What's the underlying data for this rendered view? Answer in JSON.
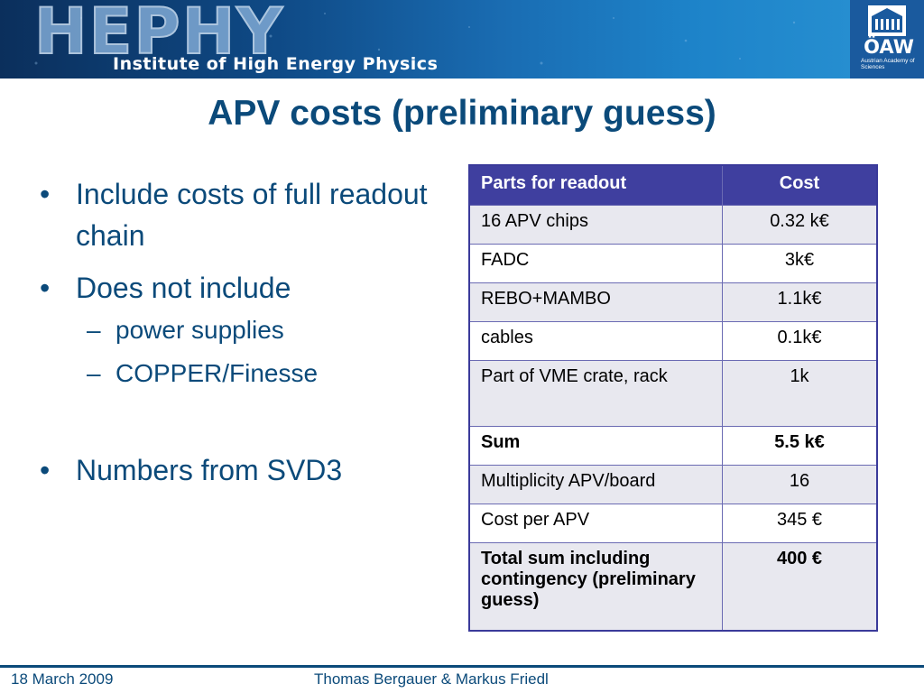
{
  "header": {
    "logo_word": "HEPHY",
    "logo_subtitle": "Institute of High Energy Physics",
    "partner_logo": "ÖAW",
    "partner_caption": "Austrian Academy of Sciences"
  },
  "slide": {
    "title": "APV costs (preliminary guess)",
    "bullets": [
      {
        "text": "Include costs of full readout chain"
      },
      {
        "text": "Does not include",
        "sub": [
          "power supplies",
          "COPPER/Finesse"
        ]
      },
      {
        "text": "Numbers from SVD3"
      }
    ]
  },
  "table": {
    "headers": [
      "Parts for readout",
      "Cost"
    ],
    "rows": [
      {
        "part": "16 APV chips",
        "cost": "0.32 k€"
      },
      {
        "part": "FADC",
        "cost": "3k€"
      },
      {
        "part": "REBO+MAMBO",
        "cost": "1.1k€"
      },
      {
        "part": "cables",
        "cost": "0.1k€"
      },
      {
        "part": "Part of VME crate, rack",
        "cost": "1k"
      },
      {
        "part": "Sum",
        "cost": "5.5 k€"
      },
      {
        "part": "Multiplicity APV/board",
        "cost": "16"
      },
      {
        "part": "Cost per APV",
        "cost": "345 €"
      },
      {
        "part": "Total sum including contingency (preliminary guess)",
        "cost": "400 €"
      }
    ]
  },
  "footer": {
    "date": "18 March 2009",
    "authors": "Thomas Bergauer & Markus Friedl"
  },
  "colors": {
    "title": "#0b4a7a",
    "table_header": "#3f3f9f",
    "table_stripe": "#e8e8ef"
  }
}
